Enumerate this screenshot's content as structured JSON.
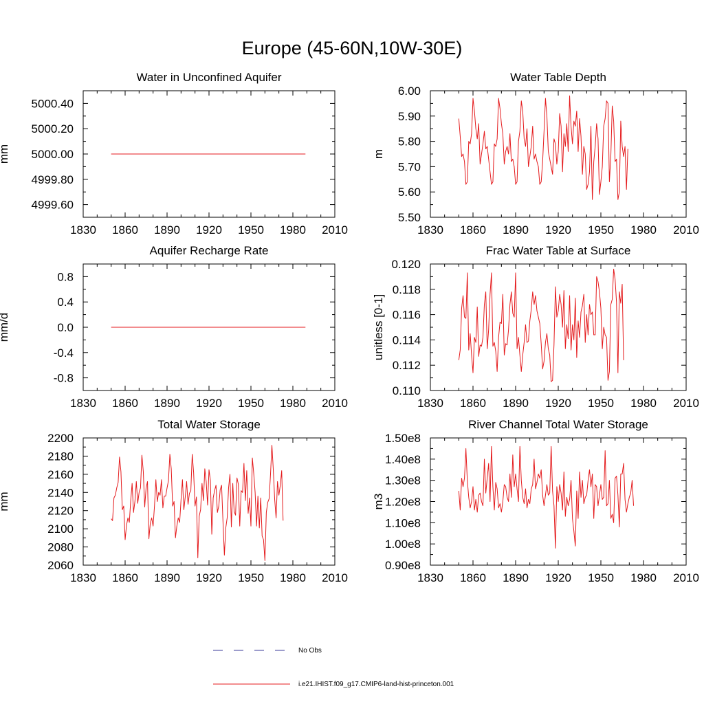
{
  "figure": {
    "title": "Europe (45-60N,10W-30E)"
  },
  "legend": [
    {
      "label": "No Obs",
      "color": "#3a3a9a",
      "style": "dashed"
    },
    {
      "label": "i.e21.IHIST.f09_g17.CMIP6-land-hist-princeton.001",
      "color": "#e41a1c",
      "style": "solid"
    }
  ],
  "colors": {
    "model": "#e41a1c",
    "obs": "#3a3a9a",
    "axis": "#000000"
  },
  "chart_data": [
    {
      "type": "line",
      "title": "Water in Unconfined Aquifer",
      "ylabel": "mm",
      "xlim": [
        1830,
        2010
      ],
      "ylim": [
        4999.5,
        5000.5
      ],
      "xticks": [
        1830,
        1860,
        1890,
        1920,
        1950,
        1980,
        2010
      ],
      "yticks": [
        4999.6,
        4999.8,
        5000.0,
        5000.2,
        5000.4
      ],
      "yticklabels": [
        "4999.60",
        "4999.80",
        "5000.00",
        "5000.20",
        "5000.40"
      ],
      "series": [
        {
          "x_start": 1850,
          "x_step": 1,
          "values": [
            5000.0,
            5000.0,
            5000.0,
            5000.0,
            5000.0,
            5000.0,
            5000.0,
            5000.0,
            5000.0,
            5000.0,
            5000.0,
            5000.0,
            5000.0,
            5000.0,
            5000.0,
            5000.0,
            5000.0,
            5000.0,
            5000.0,
            5000.0,
            5000.0,
            5000.0,
            5000.0,
            5000.0,
            5000.0,
            5000.0,
            5000.0,
            5000.0,
            5000.0,
            5000.0,
            5000.0,
            5000.0,
            5000.0,
            5000.0,
            5000.0,
            5000.0,
            5000.0,
            5000.0,
            5000.0,
            5000.0,
            5000.0,
            5000.0,
            5000.0,
            5000.0,
            5000.0,
            5000.0,
            5000.0,
            5000.0,
            5000.0,
            5000.0,
            5000.0,
            5000.0,
            5000.0,
            5000.0,
            5000.0,
            5000.0,
            5000.0,
            5000.0,
            5000.0,
            5000.0,
            5000.0,
            5000.0,
            5000.0,
            5000.0,
            5000.0,
            5000.0,
            5000.0,
            5000.0,
            5000.0,
            5000.0,
            5000.0,
            5000.0,
            5000.0,
            5000.0,
            5000.0,
            5000.0,
            5000.0,
            5000.0,
            5000.0,
            5000.0,
            5000.0,
            5000.0,
            5000.0,
            5000.0,
            5000.0,
            5000.0,
            5000.0,
            5000.0,
            5000.0,
            5000.0,
            5000.0,
            5000.0,
            5000.0,
            5000.0,
            5000.0,
            5000.0,
            5000.0,
            5000.0,
            5000.0,
            5000.0,
            5000.0,
            5000.0,
            5000.0,
            5000.0,
            5000.0,
            5000.0,
            5000.0,
            5000.0,
            5000.0,
            5000.0,
            5000.0,
            5000.0,
            5000.0,
            5000.0,
            5000.0,
            5000.0,
            5000.0,
            5000.0,
            5000.0,
            5000.0,
            5000.0,
            5000.0,
            5000.0,
            5000.0,
            5000.0,
            5000.0,
            5000.0,
            5000.0,
            5000.0,
            5000.0,
            5000.0,
            5000.0,
            5000.0,
            5000.0,
            5000.0,
            5000.0,
            5000.0,
            5000.0,
            5000.0,
            5000.0
          ]
        }
      ]
    },
    {
      "type": "line",
      "title": "Water Table Depth",
      "ylabel": "m",
      "xlim": [
        1830,
        2010
      ],
      "ylim": [
        5.5,
        6.0
      ],
      "xticks": [
        1830,
        1860,
        1890,
        1920,
        1950,
        1980,
        2010
      ],
      "yticks": [
        5.5,
        5.6,
        5.7,
        5.8,
        5.9,
        6.0
      ],
      "yticklabels": [
        "5.50",
        "5.60",
        "5.70",
        "5.80",
        "5.90",
        "6.00"
      ],
      "series": [
        {
          "x_start": 1850,
          "x_step": 1,
          "values": [
            5.89,
            5.82,
            5.74,
            5.75,
            5.72,
            5.63,
            5.64,
            5.8,
            5.79,
            5.83,
            5.97,
            5.92,
            5.85,
            5.81,
            5.87,
            5.71,
            5.75,
            5.79,
            5.84,
            5.77,
            5.78,
            5.73,
            5.68,
            5.63,
            5.64,
            5.79,
            5.78,
            5.81,
            5.97,
            5.93,
            5.87,
            5.83,
            5.71,
            5.76,
            5.78,
            5.75,
            5.83,
            5.72,
            5.73,
            5.7,
            5.63,
            5.64,
            5.8,
            5.84,
            5.96,
            5.92,
            5.81,
            5.78,
            5.85,
            5.7,
            5.74,
            5.78,
            5.86,
            5.73,
            5.75,
            5.72,
            5.7,
            5.63,
            5.64,
            5.72,
            5.84,
            5.97,
            5.9,
            5.76,
            5.73,
            5.7,
            5.67,
            5.81,
            5.79,
            5.71,
            5.76,
            5.91,
            5.86,
            5.68,
            5.83,
            5.78,
            5.87,
            5.76,
            5.98,
            5.86,
            5.79,
            5.88,
            5.86,
            5.92,
            5.76,
            5.89,
            5.82,
            5.67,
            5.78,
            5.75,
            5.61,
            5.63,
            5.68,
            5.86,
            5.57,
            5.72,
            5.78,
            5.87,
            5.81,
            5.59,
            5.64,
            5.7,
            5.86,
            5.89,
            5.96,
            5.95,
            5.64,
            5.74,
            5.94,
            5.88,
            5.72,
            5.73,
            5.57,
            5.6,
            5.88,
            5.78,
            5.74,
            5.78,
            5.61,
            5.77
          ]
        }
      ]
    },
    {
      "type": "line",
      "title": "Aquifer Recharge Rate",
      "ylabel": "mm/d",
      "xlim": [
        1830,
        2010
      ],
      "ylim": [
        -1.0,
        1.0
      ],
      "xticks": [
        1830,
        1860,
        1890,
        1920,
        1950,
        1980,
        2010
      ],
      "yticks": [
        -0.8,
        -0.4,
        0.0,
        0.4,
        0.8
      ],
      "yticklabels": [
        "-0.8",
        "-0.4",
        "0.0",
        "0.4",
        "0.8"
      ],
      "series": [
        {
          "x_start": 1850,
          "x_step": 1,
          "values": [
            0.0,
            0.0,
            0.0,
            0.0,
            0.0,
            0.0,
            0.0,
            0.0,
            0.0,
            0.0,
            0.0,
            0.0,
            0.0,
            0.0,
            0.0,
            0.0,
            0.0,
            0.0,
            0.0,
            0.0,
            0.0,
            0.0,
            0.0,
            0.0,
            0.0,
            0.0,
            0.0,
            0.0,
            0.0,
            0.0,
            0.0,
            0.0,
            0.0,
            0.0,
            0.0,
            0.0,
            0.0,
            0.0,
            0.0,
            0.0,
            0.0,
            0.0,
            0.0,
            0.0,
            0.0,
            0.0,
            0.0,
            0.0,
            0.0,
            0.0,
            0.0,
            0.0,
            0.0,
            0.0,
            0.0,
            0.0,
            0.0,
            0.0,
            0.0,
            0.0,
            0.0,
            0.0,
            0.0,
            0.0,
            0.0,
            0.0,
            0.0,
            0.0,
            0.0,
            0.0,
            0.0,
            0.0,
            0.0,
            0.0,
            0.0,
            0.0,
            0.0,
            0.0,
            0.0,
            0.0,
            0.0,
            0.0,
            0.0,
            0.0,
            0.0,
            0.0,
            0.0,
            0.0,
            0.0,
            0.0,
            0.0,
            0.0,
            0.0,
            0.0,
            0.0,
            0.0,
            0.0,
            0.0,
            0.0,
            0.0,
            0.0,
            0.0,
            0.0,
            0.0,
            0.0,
            0.0,
            0.0,
            0.0,
            0.0,
            0.0,
            0.0,
            0.0,
            0.0,
            0.0,
            0.0,
            0.0,
            0.0,
            0.0,
            0.0,
            0.0,
            0.0,
            0.0,
            0.0,
            0.0,
            0.0,
            0.0,
            0.0,
            0.0,
            0.0,
            0.0,
            0.0,
            0.0,
            0.0,
            0.0,
            0.0,
            0.0,
            0.0,
            0.0,
            0.0,
            0.0
          ]
        }
      ]
    },
    {
      "type": "line",
      "title": "Frac Water Table at Surface",
      "ylabel": "unitless [0-1]",
      "xlim": [
        1830,
        2010
      ],
      "ylim": [
        0.11,
        0.12
      ],
      "xticks": [
        1830,
        1860,
        1890,
        1920,
        1950,
        1980,
        2010
      ],
      "yticks": [
        0.11,
        0.112,
        0.114,
        0.116,
        0.118,
        0.12
      ],
      "yticklabels": [
        "0.110",
        "0.112",
        "0.114",
        "0.116",
        "0.118",
        "0.120"
      ],
      "series": [
        {
          "x_start": 1850,
          "x_step": 1,
          "values": [
            0.1124,
            0.1132,
            0.1165,
            0.1175,
            0.1158,
            0.1157,
            0.1193,
            0.1132,
            0.1145,
            0.1128,
            0.1114,
            0.1142,
            0.1138,
            0.1166,
            0.1127,
            0.1136,
            0.1135,
            0.1142,
            0.1168,
            0.1178,
            0.1133,
            0.1148,
            0.1176,
            0.1193,
            0.1135,
            0.1138,
            0.1131,
            0.1115,
            0.1142,
            0.1154,
            0.1153,
            0.1176,
            0.1128,
            0.1137,
            0.1136,
            0.1148,
            0.1168,
            0.1178,
            0.1161,
            0.1158,
            0.1193,
            0.1133,
            0.1142,
            0.1128,
            0.1115,
            0.1128,
            0.1138,
            0.1152,
            0.1138,
            0.1139,
            0.1155,
            0.1164,
            0.1178,
            0.1168,
            0.1175,
            0.1163,
            0.1158,
            0.1153,
            0.1137,
            0.1117,
            0.1123,
            0.1138,
            0.1145,
            0.1133,
            0.1128,
            0.1107,
            0.1108,
            0.1136,
            0.1182,
            0.1158,
            0.1163,
            0.1176,
            0.1168,
            0.115,
            0.1179,
            0.1133,
            0.1152,
            0.1141,
            0.1175,
            0.1132,
            0.1152,
            0.114,
            0.1173,
            0.1126,
            0.1155,
            0.1142,
            0.1162,
            0.1167,
            0.1176,
            0.1138,
            0.116,
            0.1144,
            0.1168,
            0.116,
            0.1162,
            0.1144,
            0.1144,
            0.119,
            0.1186,
            0.1178,
            0.1165,
            0.1133,
            0.115,
            0.1144,
            0.1142,
            0.1108,
            0.1115,
            0.1168,
            0.1172,
            0.1196,
            0.1188,
            0.117,
            0.1114,
            0.1178,
            0.1169,
            0.1184,
            0.1124
          ]
        }
      ]
    },
    {
      "type": "line",
      "title": "Total Water Storage",
      "ylabel": "mm",
      "xlim": [
        1830,
        2010
      ],
      "ylim": [
        2060,
        2200
      ],
      "xticks": [
        1830,
        1860,
        1890,
        1920,
        1950,
        1980,
        2010
      ],
      "yticks": [
        2060,
        2080,
        2100,
        2120,
        2140,
        2160,
        2180,
        2200
      ],
      "yticklabels": [
        "2060",
        "2080",
        "2100",
        "2120",
        "2140",
        "2160",
        "2180",
        "2200"
      ],
      "series": [
        {
          "x_start": 1850,
          "x_step": 1,
          "values": [
            2111,
            2109,
            2134,
            2137,
            2145,
            2151,
            2179,
            2163,
            2121,
            2125,
            2088,
            2104,
            2112,
            2107,
            2131,
            2150,
            2118,
            2130,
            2152,
            2128,
            2140,
            2145,
            2181,
            2163,
            2124,
            2145,
            2152,
            2089,
            2106,
            2112,
            2103,
            2125,
            2154,
            2130,
            2140,
            2137,
            2154,
            2123,
            2136,
            2136,
            2145,
            2153,
            2182,
            2166,
            2125,
            2130,
            2090,
            2103,
            2112,
            2107,
            2132,
            2154,
            2121,
            2135,
            2152,
            2127,
            2139,
            2142,
            2182,
            2162,
            2125,
            2135,
            2068,
            2114,
            2121,
            2150,
            2131,
            2166,
            2152,
            2126,
            2165,
            2153,
            2094,
            2134,
            2142,
            2148,
            2118,
            2125,
            2143,
            2148,
            2108,
            2071,
            2101,
            2112,
            2145,
            2160,
            2102,
            2150,
            2119,
            2115,
            2156,
            2149,
            2103,
            2142,
            2140,
            2172,
            2131,
            2164,
            2117,
            2134,
            2103,
            2178,
            2161,
            2140,
            2103,
            2136,
            2101,
            2134,
            2092,
            2088,
            2065,
            2118,
            2129,
            2133,
            2160,
            2192,
            2165,
            2132,
            2112,
            2152,
            2137,
            2148,
            2164,
            2109
          ]
        }
      ]
    },
    {
      "type": "line",
      "title": "River Channel Total Water Storage",
      "ylabel": "m3",
      "xlim": [
        1830,
        2010
      ],
      "ylim": [
        90000000.0,
        150000000.0
      ],
      "xticks": [
        1830,
        1860,
        1890,
        1920,
        1950,
        1980,
        2010
      ],
      "yticks": [
        90000000.0,
        100000000.0,
        110000000.0,
        120000000.0,
        130000000.0,
        140000000.0,
        150000000.0
      ],
      "yticklabels": [
        "0.90e8",
        "1.00e8",
        "1.10e8",
        "1.20e8",
        "1.30e8",
        "1.40e8",
        "1.50e8"
      ],
      "series": [
        {
          "x_start": 1850,
          "x_step": 1,
          "values": [
            125000000.0,
            116000000.0,
            131000000.0,
            127000000.0,
            131000000.0,
            145000000.0,
            130000000.0,
            122000000.0,
            117000000.0,
            120000000.0,
            127000000.0,
            116000000.0,
            121000000.0,
            115000000.0,
            123000000.0,
            124000000.0,
            120000000.0,
            118000000.0,
            140000000.0,
            124000000.0,
            131000000.0,
            138000000.0,
            120000000.0,
            146000000.0,
            127000000.0,
            116000000.0,
            129000000.0,
            126000000.0,
            117000000.0,
            119000000.0,
            115000000.0,
            120000000.0,
            128000000.0,
            127000000.0,
            122000000.0,
            120000000.0,
            133000000.0,
            122000000.0,
            142000000.0,
            127000000.0,
            133000000.0,
            126000000.0,
            120000000.0,
            146000000.0,
            130000000.0,
            122000000.0,
            119000000.0,
            126000000.0,
            117000000.0,
            121000000.0,
            119000000.0,
            126000000.0,
            128000000.0,
            140000000.0,
            126000000.0,
            129000000.0,
            133000000.0,
            131000000.0,
            135000000.0,
            123000000.0,
            118000000.0,
            123000000.0,
            128000000.0,
            123000000.0,
            124000000.0,
            146000000.0,
            125000000.0,
            118000000.0,
            98000000.0,
            127000000.0,
            120000000.0,
            128000000.0,
            124000000.0,
            116000000.0,
            134000000.0,
            113000000.0,
            122000000.0,
            118000000.0,
            121000000.0,
            130000000.0,
            112000000.0,
            106000000.0,
            99000000.0,
            125000000.0,
            112000000.0,
            134000000.0,
            122000000.0,
            130000000.0,
            119000000.0,
            122000000.0,
            123000000.0,
            130000000.0,
            135000000.0,
            127000000.0,
            133000000.0,
            112000000.0,
            128000000.0,
            127000000.0,
            118000000.0,
            123000000.0,
            128000000.0,
            121000000.0,
            122000000.0,
            144000000.0,
            118000000.0,
            119000000.0,
            130000000.0,
            112000000.0,
            114000000.0,
            110000000.0,
            131000000.0,
            132000000.0,
            123000000.0,
            108000000.0,
            133000000.0,
            133000000.0,
            138000000.0,
            121000000.0,
            115000000.0,
            119000000.0,
            122000000.0,
            124000000.0,
            130000000.0,
            118000000.0
          ]
        }
      ]
    }
  ]
}
